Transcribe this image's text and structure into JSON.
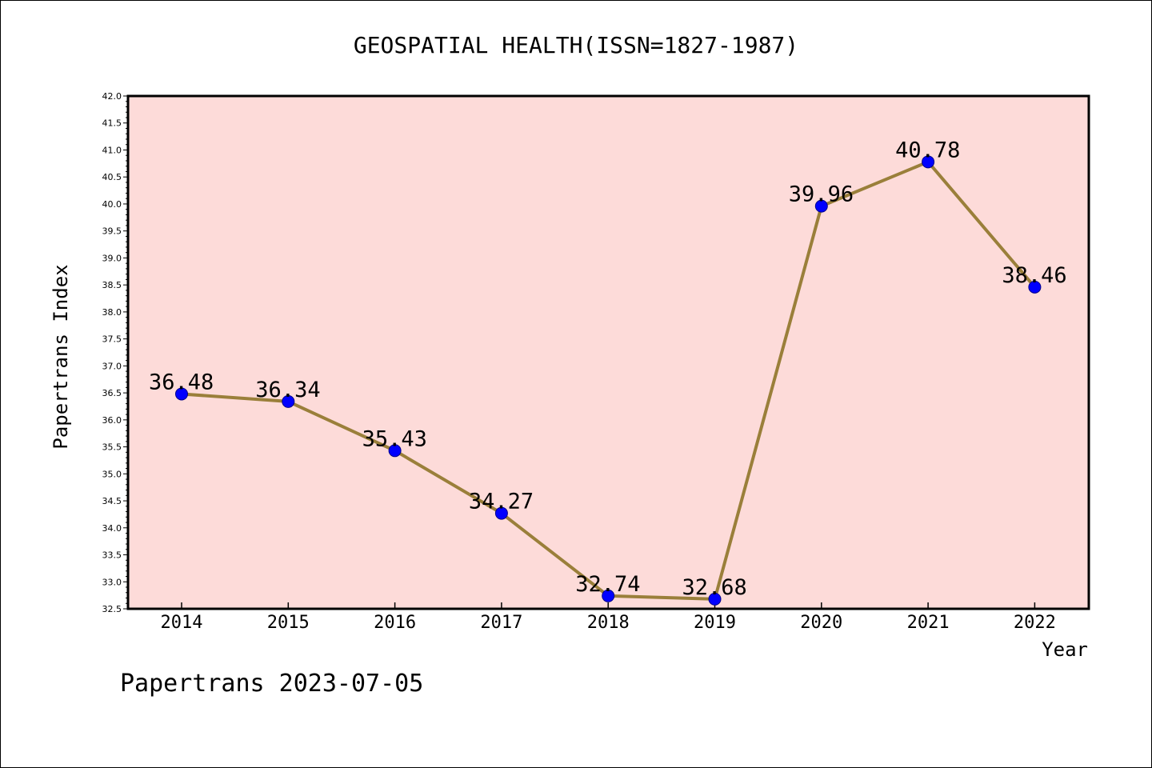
{
  "title": "GEOSPATIAL HEALTH(ISSN=1827-1987)",
  "footer": "Papertrans 2023-07-05",
  "colors": {
    "plot_background": "#fddbd9",
    "line": "#9a7f3a",
    "marker": "#0000ff",
    "frame": "#000000"
  },
  "chart_data": {
    "type": "line",
    "title": "GEOSPATIAL HEALTH(ISSN=1827-1987)",
    "xlabel": "Year",
    "ylabel": "Papertrans Index",
    "categories": [
      "2014",
      "2015",
      "2016",
      "2017",
      "2018",
      "2019",
      "2020",
      "2021",
      "2022"
    ],
    "series": [
      {
        "values": [
          36.48,
          36.34,
          35.43,
          34.27,
          32.74,
          32.68,
          39.96,
          40.78,
          38.46
        ]
      }
    ],
    "data_labels": [
      "36.48",
      "36.34",
      "35.43",
      "34.27",
      "32.74",
      "32.68",
      "39.96",
      "40.78",
      "38.46"
    ],
    "ylim": [
      32.5,
      42.0
    ],
    "ytick_step": 0.5,
    "grid": false,
    "legend": "none"
  }
}
